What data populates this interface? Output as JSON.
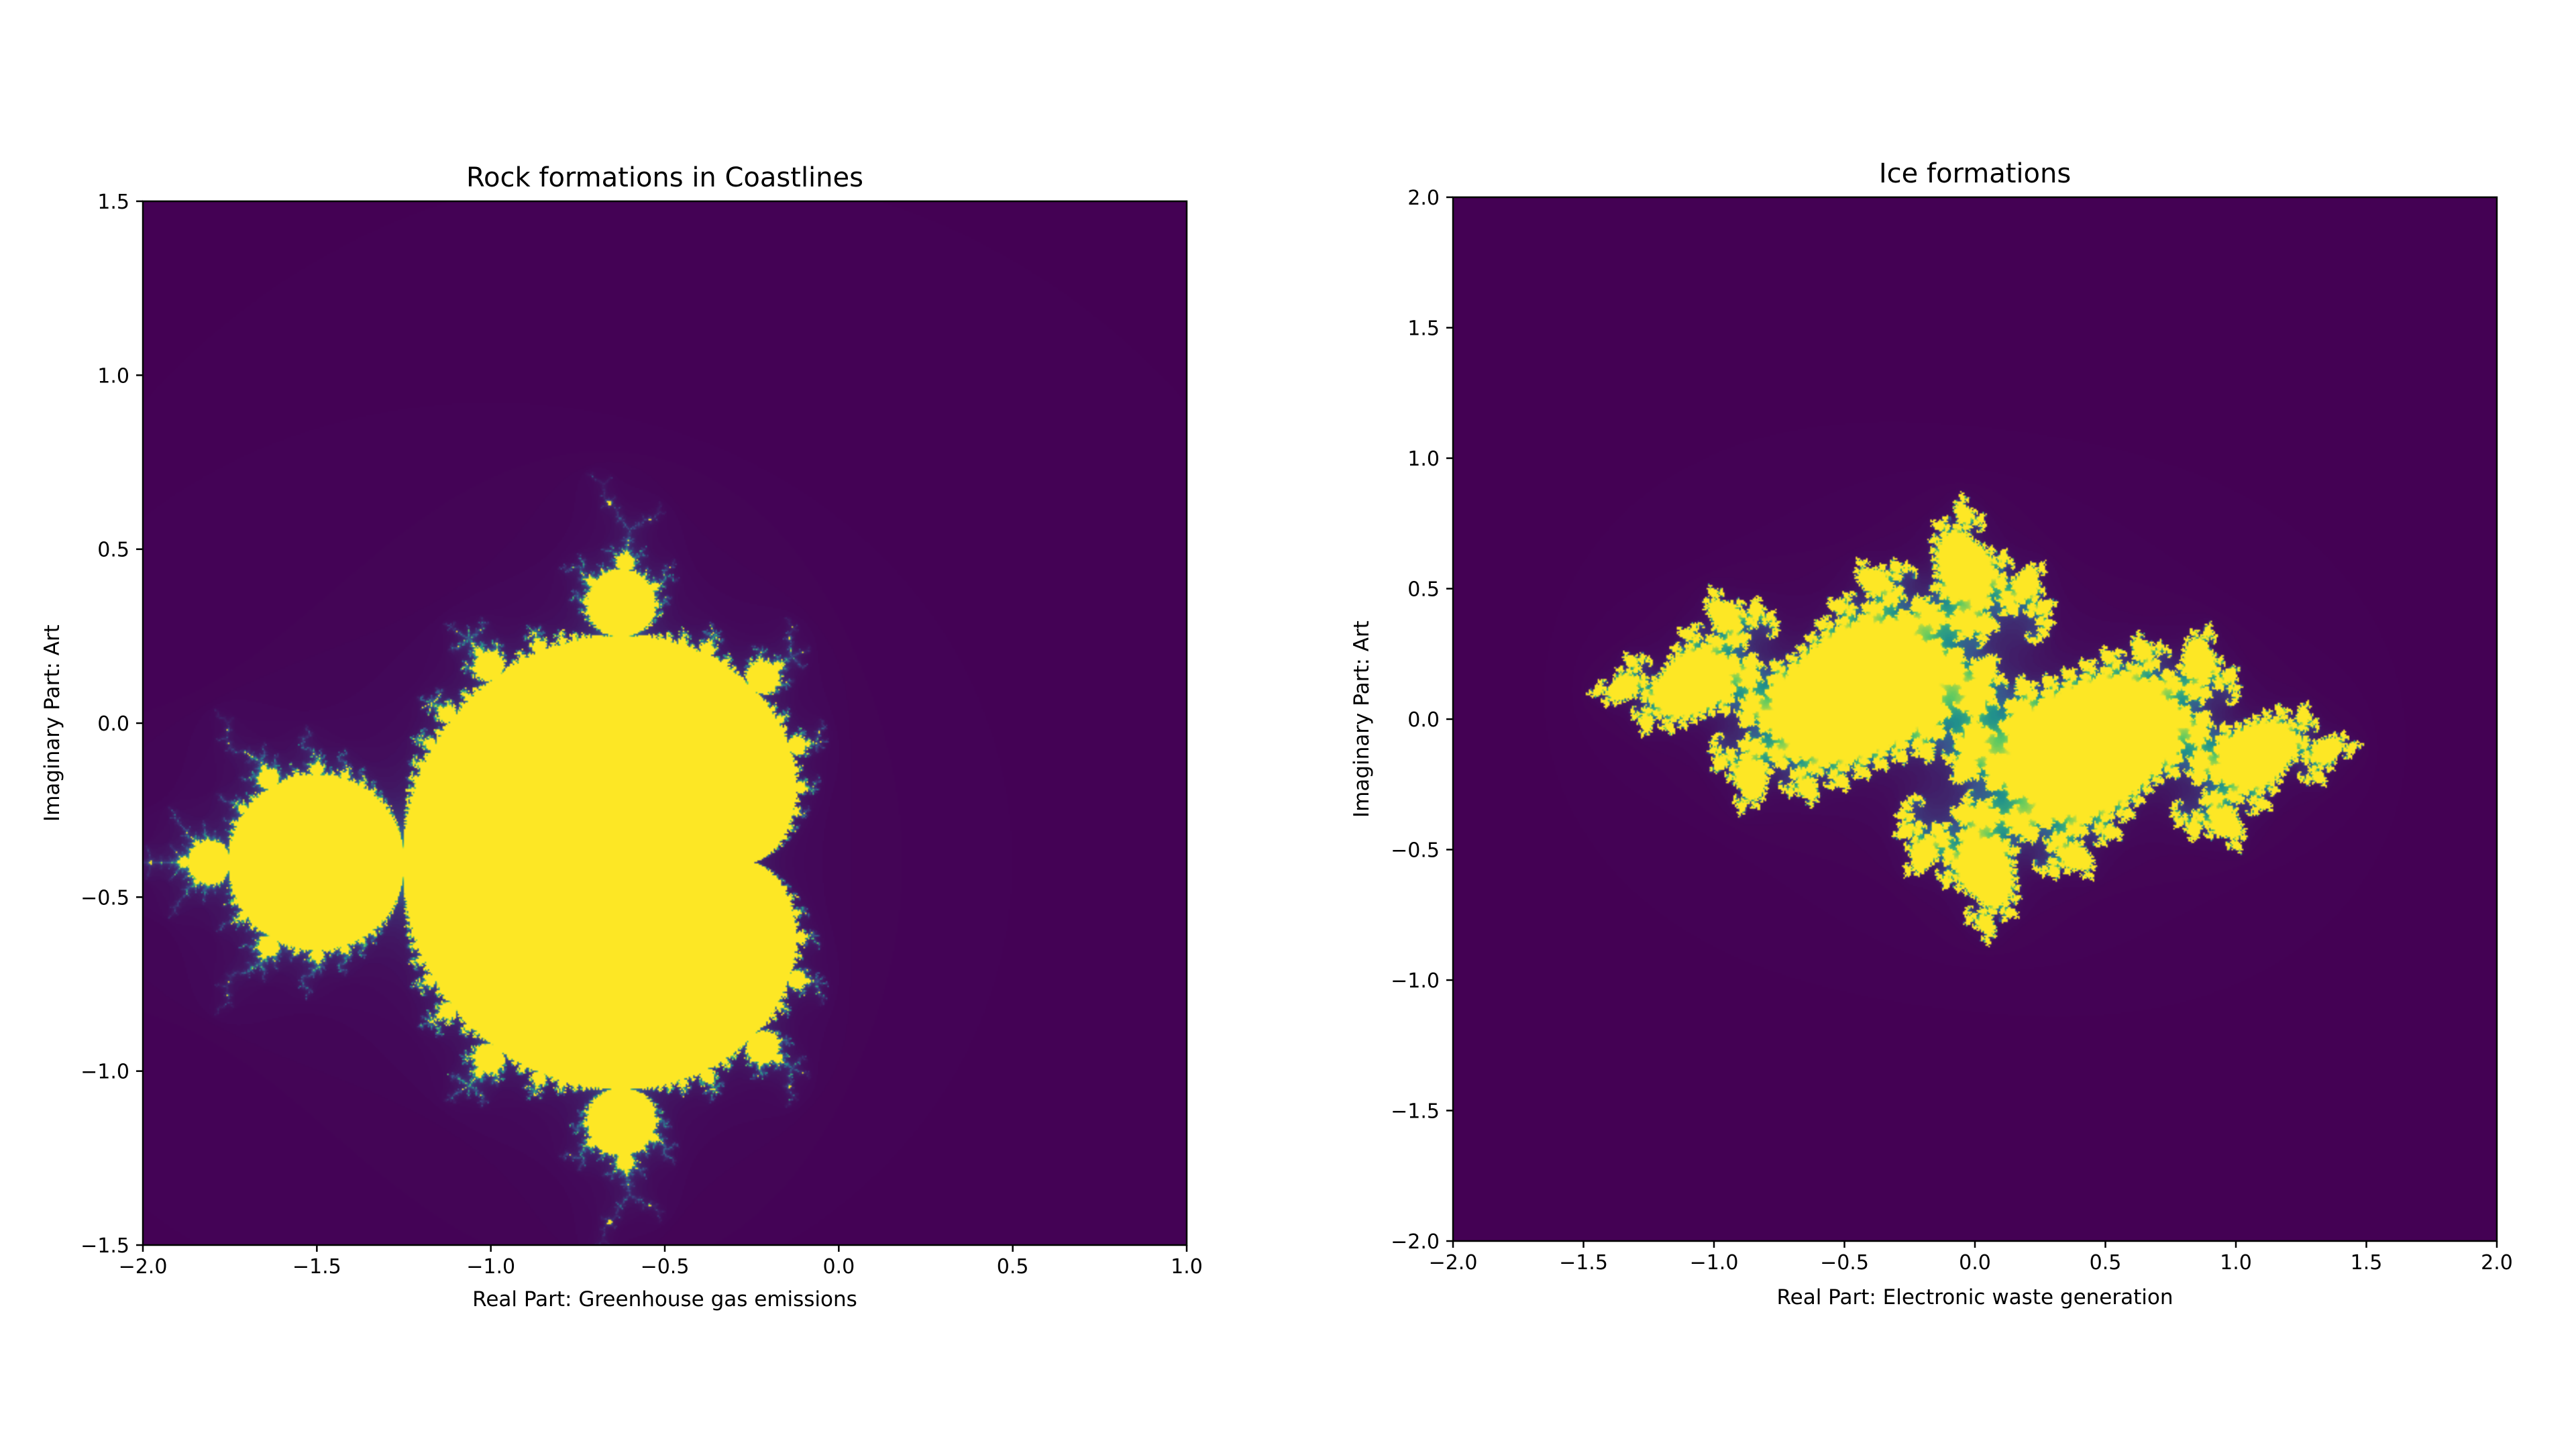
{
  "chart_data": [
    {
      "type": "heatmap",
      "kind": "mandelbrot",
      "title": "Rock formations in Coastlines",
      "xlabel": "Real Part: Greenhouse gas emissions",
      "ylabel": "Imaginary Part: Art",
      "xlim": [
        -2.0,
        1.0
      ],
      "ylim": [
        -1.5,
        1.5
      ],
      "xticks": [
        -2.0,
        -1.5,
        -1.0,
        -0.5,
        0.0,
        0.5,
        1.0
      ],
      "xtick_labels": [
        "−2.0",
        "−1.5",
        "−1.0",
        "−0.5",
        "0.0",
        "0.5",
        "1.0"
      ],
      "yticks": [
        1.5,
        1.0,
        0.5,
        0.0,
        -0.5,
        -1.0,
        -1.5
      ],
      "ytick_labels": [
        "1.5",
        "1.0",
        "0.5",
        "0.0",
        "−0.5",
        "−1.0",
        "−1.5"
      ],
      "center_offset": [
        -0.5,
        -0.4
      ],
      "max_iter": 80,
      "colormap": "viridis",
      "background_color": "#440154",
      "set_color": "#fde725"
    },
    {
      "type": "heatmap",
      "kind": "julia",
      "title": "Ice formations",
      "xlabel": "Real Part: Electronic waste generation",
      "ylabel": "Imaginary Part: Art",
      "xlim": [
        -2.0,
        2.0
      ],
      "ylim": [
        -2.0,
        2.0
      ],
      "xticks": [
        -2.0,
        -1.5,
        -1.0,
        -0.5,
        0.0,
        0.5,
        1.0,
        1.5,
        2.0
      ],
      "xtick_labels": [
        "−2.0",
        "−1.5",
        "−1.0",
        "−0.5",
        "0.0",
        "0.5",
        "1.0",
        "1.5",
        "2.0"
      ],
      "yticks": [
        2.0,
        1.5,
        1.0,
        0.5,
        0.0,
        -0.5,
        -1.0,
        -1.5,
        -2.0
      ],
      "ytick_labels": [
        "2.0",
        "1.5",
        "1.0",
        "0.5",
        "0.0",
        "−0.5",
        "−1.0",
        "−1.5",
        "−2.0"
      ],
      "c_real": -0.7269,
      "c_imag": 0.1889,
      "max_iter": 80,
      "colormap": "viridis",
      "background_color": "#440154",
      "set_color": "#fde725"
    }
  ]
}
